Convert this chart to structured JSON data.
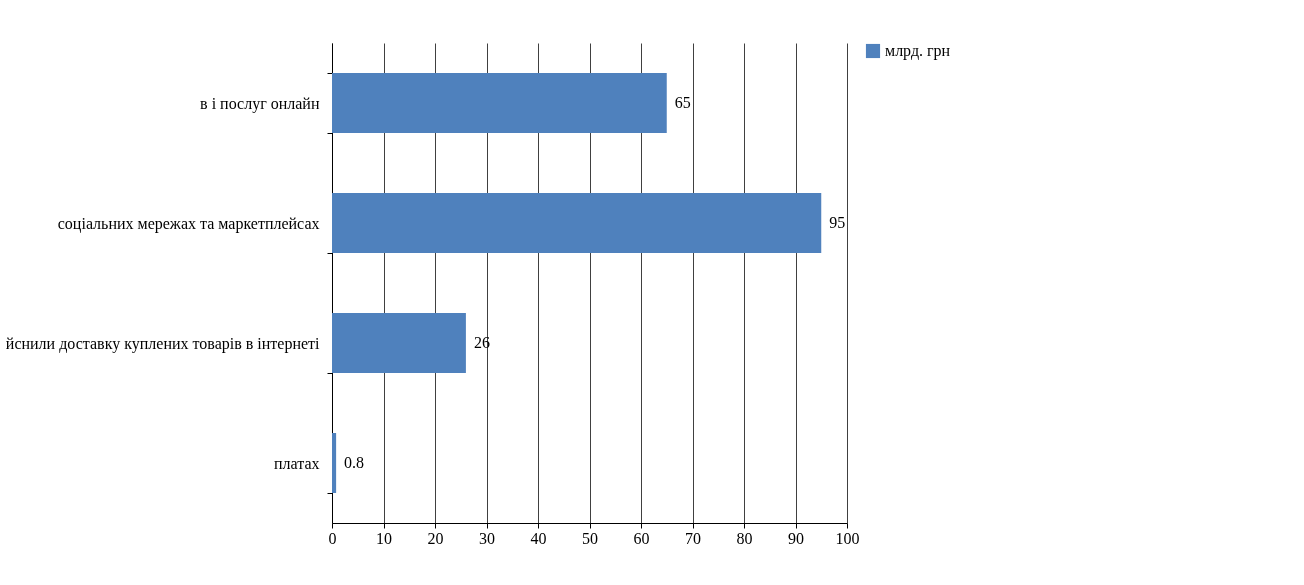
{
  "chart_data": {
    "type": "bar",
    "orientation": "horizontal",
    "categories": [
      "в і послуг онлайн",
      "соціальних мережах та маркетплейсах",
      "йснили доставку куплених товарів в інтернеті",
      "платах"
    ],
    "series": [
      {
        "name": "млрд. грн",
        "color": "#4f81bd",
        "values": [
          65,
          95,
          26,
          0.8
        ]
      }
    ],
    "xlim": [
      0,
      100
    ],
    "xticks": [
      0,
      10,
      20,
      30,
      40,
      50,
      60,
      70,
      80,
      90,
      100
    ],
    "grid": "x",
    "legend": "right",
    "data_labels": true
  }
}
